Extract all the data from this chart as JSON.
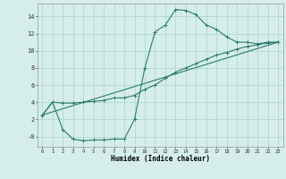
{
  "xlabel": "Humidex (Indice chaleur)",
  "ylabel": "",
  "bg_color": "#d5eeea",
  "grid_color": "#b0d8d0",
  "line_color": "#2d7a6e",
  "xlim": [
    -0.5,
    23.5
  ],
  "ylim": [
    -1.2,
    15.5
  ],
  "xticks": [
    0,
    1,
    2,
    3,
    4,
    5,
    6,
    7,
    8,
    9,
    10,
    11,
    12,
    13,
    14,
    15,
    16,
    17,
    18,
    19,
    20,
    21,
    22,
    23
  ],
  "yticks": [
    0,
    2,
    4,
    6,
    8,
    10,
    12,
    14
  ],
  "ytick_labels": [
    "-0",
    "2",
    "4",
    "6",
    "8",
    "10",
    "12",
    "14"
  ],
  "line1_x": [
    0,
    1,
    2,
    3,
    4,
    5,
    6,
    7,
    8,
    9,
    10,
    11,
    12,
    13,
    14,
    15,
    16,
    17,
    18,
    19,
    20,
    21,
    22,
    23
  ],
  "line1_y": [
    2.5,
    4.0,
    0.8,
    -0.3,
    -0.5,
    -0.4,
    -0.4,
    -0.3,
    -0.3,
    2.0,
    8.0,
    12.2,
    13.0,
    14.8,
    14.7,
    14.2,
    13.0,
    12.5,
    11.6,
    11.0,
    11.0,
    10.8,
    11.0,
    11.0
  ],
  "line2_x": [
    0,
    1,
    2,
    3,
    4,
    5,
    6,
    7,
    8,
    9,
    10,
    11,
    12,
    13,
    14,
    15,
    16,
    17,
    18,
    19,
    20,
    21,
    22,
    23
  ],
  "line2_y": [
    2.5,
    4.0,
    3.9,
    3.9,
    4.0,
    4.1,
    4.2,
    4.5,
    4.5,
    4.8,
    5.5,
    6.0,
    6.8,
    7.5,
    8.0,
    8.5,
    9.0,
    9.5,
    9.8,
    10.2,
    10.5,
    10.7,
    10.9,
    11.0
  ],
  "line3_x": [
    0,
    23
  ],
  "line3_y": [
    2.5,
    11.0
  ]
}
